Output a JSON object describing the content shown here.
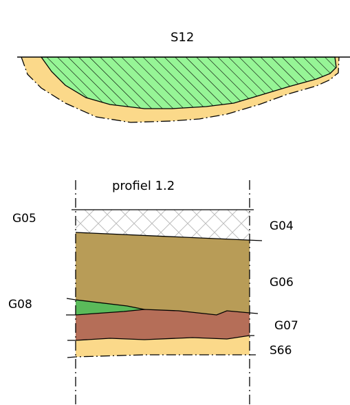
{
  "top_section": {
    "label": "S12",
    "colors": {
      "fill": "#96f596",
      "edge": "#fbd98a",
      "hatch": "#000000"
    }
  },
  "profile": {
    "title": "profiel  1.2",
    "layers": [
      {
        "code": "G05",
        "color": "#ffffff"
      },
      {
        "code": "G04",
        "color": "#ffffff"
      },
      {
        "code": "G06",
        "color": "#b89c57"
      },
      {
        "code": "G08",
        "color": "#5aba5a"
      },
      {
        "code": "G07",
        "color": "#b56e58"
      },
      {
        "code": "S66",
        "color": "#fbd98a"
      }
    ]
  }
}
